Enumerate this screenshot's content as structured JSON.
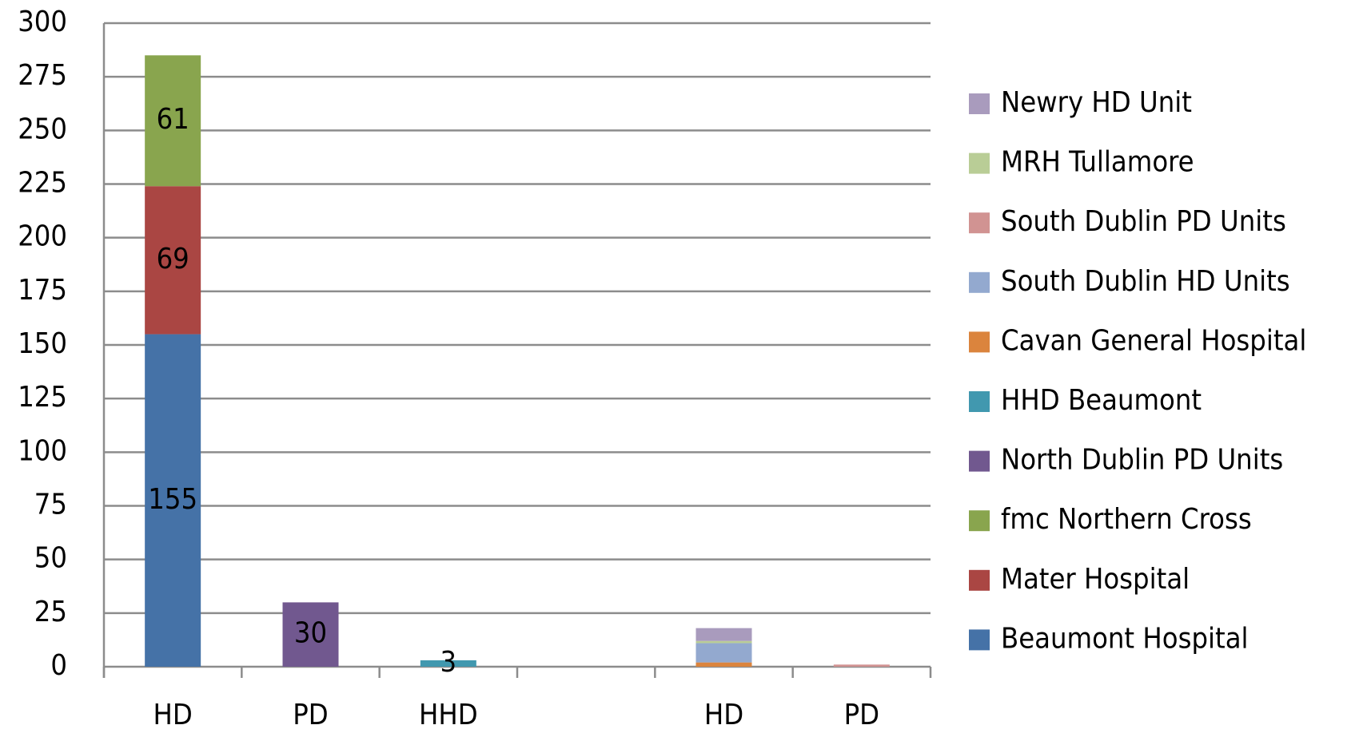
{
  "chart_data": {
    "type": "stacked_bar",
    "categories": [
      "HD",
      "PD",
      "HHD",
      null,
      "HD",
      "PD"
    ],
    "series": [
      {
        "name": "Beaumont Hospital",
        "color": "#4572a7",
        "values": [
          155,
          null,
          null,
          null,
          null,
          null
        ],
        "data_labels": true
      },
      {
        "name": "Mater Hospital",
        "color": "#aa4643",
        "values": [
          69,
          null,
          null,
          null,
          null,
          null
        ],
        "data_labels": true
      },
      {
        "name": "fmc Northern Cross",
        "color": "#89a54e",
        "values": [
          61,
          null,
          null,
          null,
          null,
          null
        ],
        "data_labels": true
      },
      {
        "name": "North Dublin PD Units",
        "color": "#71588f",
        "values": [
          null,
          30,
          null,
          null,
          null,
          null
        ],
        "data_labels": true
      },
      {
        "name": "HHD Beaumont",
        "color": "#4198af",
        "values": [
          null,
          null,
          3,
          null,
          null,
          null
        ],
        "data_labels": true
      },
      {
        "name": "Cavan General Hospital",
        "color": "#db843d",
        "values": [
          null,
          null,
          null,
          null,
          2,
          null
        ],
        "data_labels": false
      },
      {
        "name": "South Dublin HD Units",
        "color": "#93a9cf",
        "values": [
          null,
          null,
          null,
          null,
          9,
          null
        ],
        "data_labels": false
      },
      {
        "name": "South Dublin PD Units",
        "color": "#d19392",
        "values": [
          null,
          null,
          null,
          null,
          null,
          1
        ],
        "data_labels": false
      },
      {
        "name": "MRH Tullamore",
        "color": "#b9cd96",
        "values": [
          null,
          null,
          null,
          null,
          1,
          null
        ],
        "data_labels": false
      },
      {
        "name": "Newry HD Unit",
        "color": "#a99bbd",
        "values": [
          null,
          null,
          null,
          null,
          6,
          null
        ],
        "data_labels": false
      }
    ],
    "ylim": [
      0,
      300
    ],
    "yticks": [
      0,
      25,
      50,
      75,
      100,
      125,
      150,
      175,
      200,
      225,
      250,
      275,
      300
    ],
    "grid": true,
    "legend": "right"
  }
}
